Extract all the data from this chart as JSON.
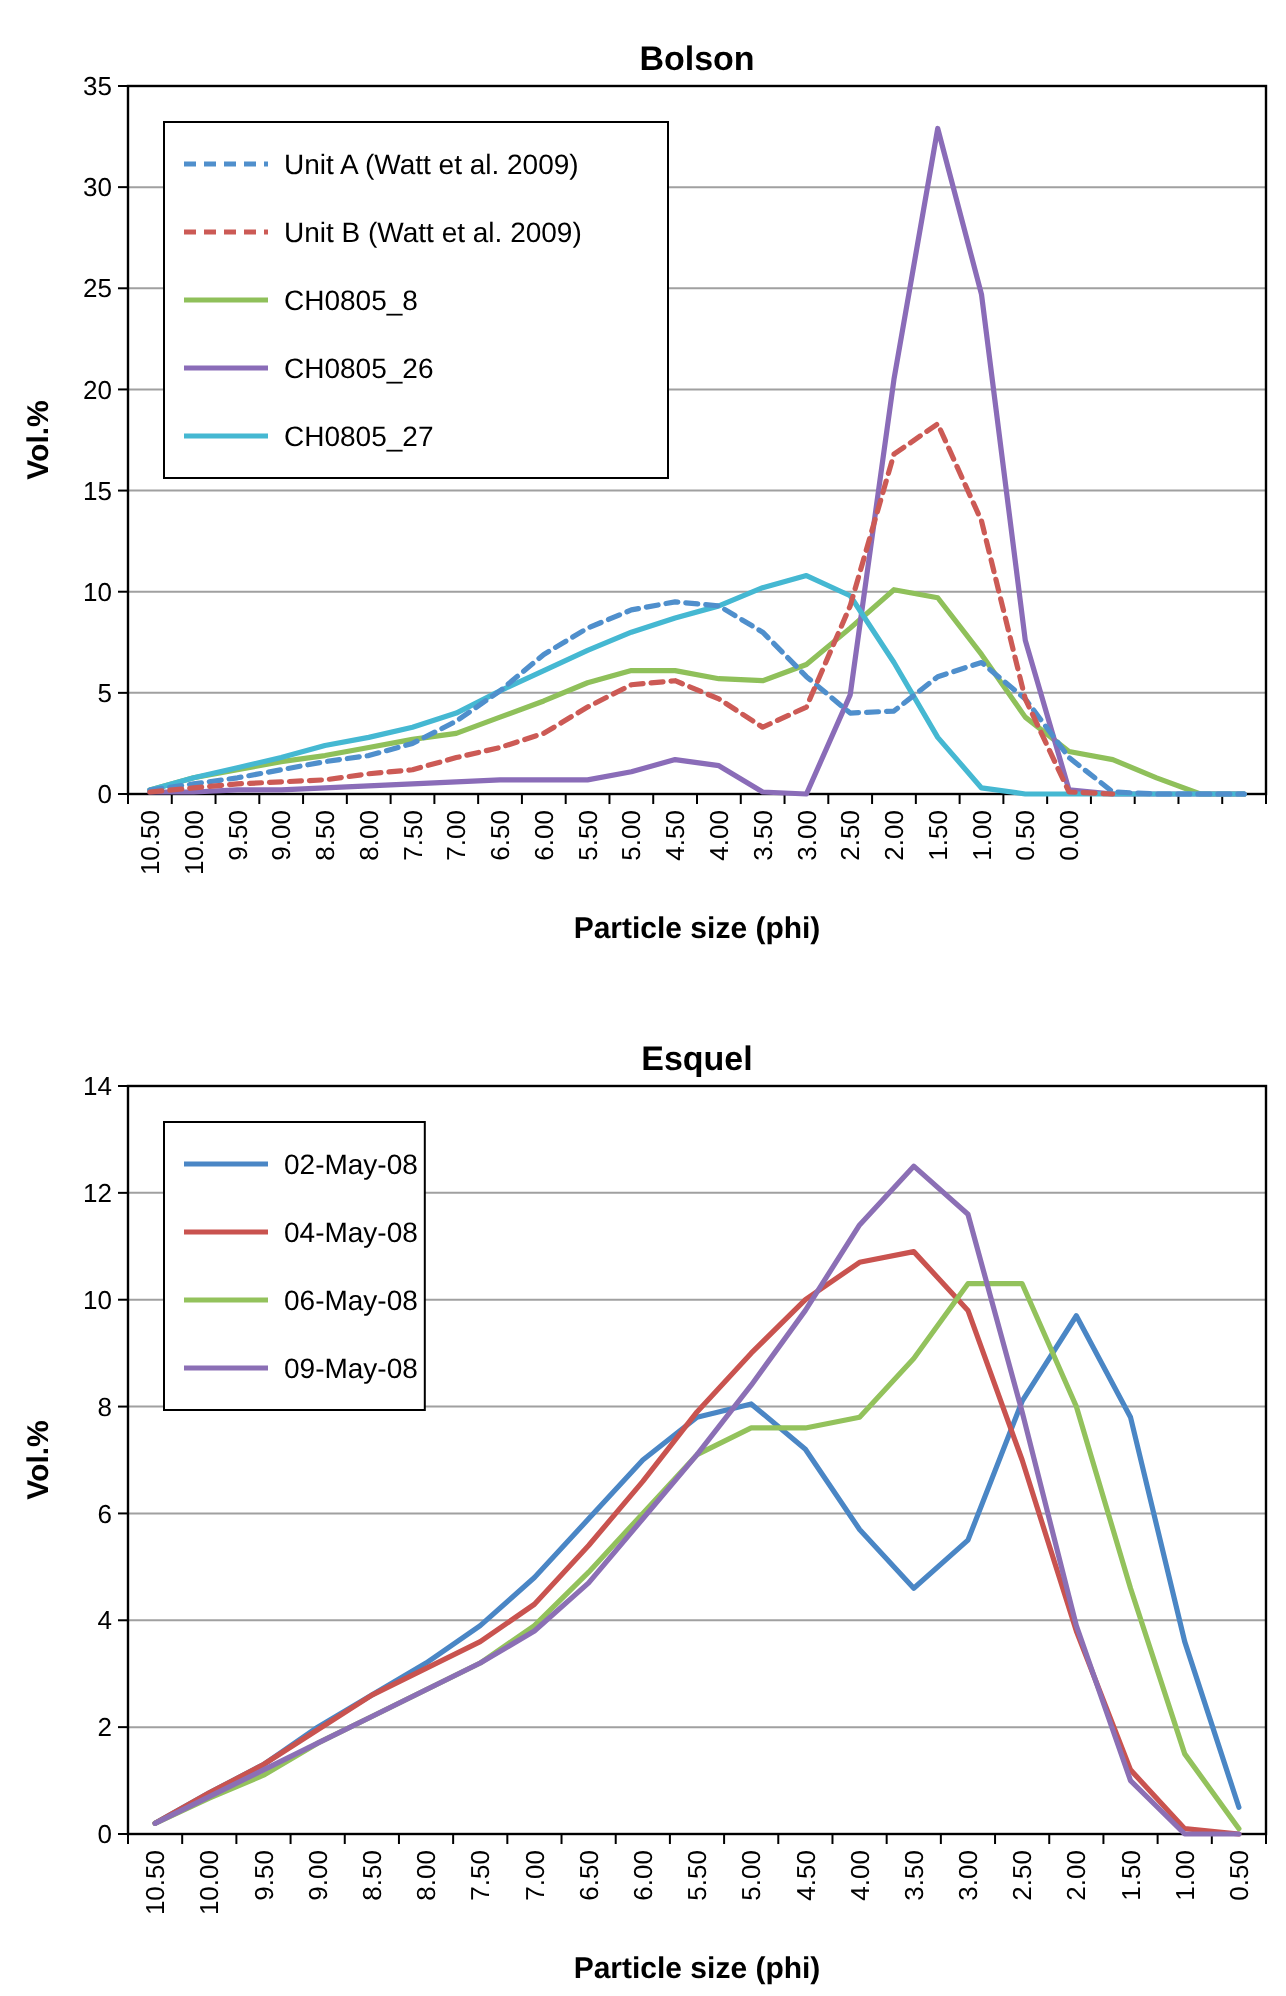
{
  "chart_data": [
    {
      "type": "line",
      "title": "Bolson",
      "xlabel": "Particle size (phi)",
      "ylabel": "Vol.%",
      "categories": [
        "10.50",
        "10.00",
        "9.50",
        "9.00",
        "8.50",
        "8.00",
        "7.50",
        "7.00",
        "6.50",
        "6.00",
        "5.50",
        "5.00",
        "4.50",
        "4.00",
        "3.50",
        "3.00",
        "2.50",
        "2.00",
        "1.50",
        "1.00",
        "0.50",
        "0.00",
        null,
        null,
        null,
        null
      ],
      "ylim": [
        0,
        35
      ],
      "yticks": [
        0,
        5,
        10,
        15,
        20,
        25,
        30,
        35
      ],
      "grid": "y",
      "legend": "top left",
      "marker": "none",
      "series": [
        {
          "name": "Unit A (Watt et al. 2009)",
          "color": "#4f8fcc",
          "line_style": "dashed",
          "values": [
            0.2,
            0.5,
            0.8,
            1.2,
            1.6,
            1.9,
            2.5,
            3.6,
            5.1,
            6.9,
            8.2,
            9.1,
            9.5,
            9.3,
            8.0,
            5.8,
            4.0,
            4.1,
            5.8,
            6.5,
            4.7,
            1.8,
            0.1,
            0,
            0,
            0
          ]
        },
        {
          "name": "Unit B (Watt et al. 2009)",
          "color": "#cc5a55",
          "line_style": "dashed",
          "values": [
            0.1,
            0.3,
            0.5,
            0.6,
            0.7,
            1.0,
            1.2,
            1.8,
            2.3,
            3.0,
            4.3,
            5.4,
            5.6,
            4.7,
            3.3,
            4.3,
            9.3,
            16.8,
            18.3,
            13.5,
            4.7,
            0.1,
            0,
            null,
            null,
            null
          ]
        },
        {
          "name": "CH0805_8",
          "color": "#8fc05a",
          "line_style": "solid",
          "values": [
            0.2,
            0.8,
            1.2,
            1.6,
            1.9,
            2.3,
            2.7,
            3.0,
            3.8,
            4.6,
            5.5,
            6.1,
            6.1,
            5.7,
            5.6,
            6.4,
            8.2,
            10.1,
            9.7,
            6.9,
            3.8,
            2.1,
            1.7,
            0.8,
            0,
            0
          ]
        },
        {
          "name": "CH0805_26",
          "color": "#8a6cb8",
          "line_style": "solid",
          "values": [
            0.1,
            0.1,
            0.2,
            0.2,
            0.3,
            0.4,
            0.5,
            0.6,
            0.7,
            0.7,
            0.7,
            1.1,
            1.7,
            1.4,
            0.1,
            0,
            4.9,
            20.5,
            32.9,
            24.7,
            7.6,
            0.2,
            0,
            0,
            0,
            0
          ]
        },
        {
          "name": "CH0805_27",
          "color": "#45b8d2",
          "line_style": "solid",
          "values": [
            0.2,
            0.8,
            1.3,
            1.8,
            2.4,
            2.8,
            3.3,
            4.0,
            5.1,
            6.1,
            7.1,
            8.0,
            8.7,
            9.3,
            10.2,
            10.8,
            9.8,
            6.5,
            2.8,
            0.3,
            0,
            0,
            0,
            0,
            0,
            0
          ]
        }
      ]
    },
    {
      "type": "line",
      "title": "Esquel",
      "xlabel": "Particle size (phi)",
      "ylabel": "Vol.%",
      "categories": [
        "10.50",
        "10.00",
        "9.50",
        "9.00",
        "8.50",
        "8.00",
        "7.50",
        "7.00",
        "6.50",
        "6.00",
        "5.50",
        "5.00",
        "4.50",
        "4.00",
        "3.50",
        "3.00",
        "2.50",
        "2.00",
        "1.50",
        "1.00",
        "0.50"
      ],
      "ylim": [
        0,
        14
      ],
      "yticks": [
        0,
        2,
        4,
        6,
        8,
        10,
        12,
        14
      ],
      "grid": "y",
      "legend": "top left",
      "marker": "none",
      "series": [
        {
          "name": "02-May-08",
          "color": "#4a86c5",
          "line_style": "solid",
          "values": [
            0.2,
            0.77,
            1.3,
            2.0,
            2.6,
            3.2,
            3.9,
            4.8,
            5.9,
            7.0,
            7.8,
            8.05,
            7.2,
            5.7,
            4.6,
            5.5,
            8.1,
            9.7,
            7.8,
            3.6,
            0.5
          ]
        },
        {
          "name": "04-May-08",
          "color": "#c9534f",
          "line_style": "solid",
          "values": [
            0.2,
            0.77,
            1.3,
            1.95,
            2.6,
            3.1,
            3.6,
            4.3,
            5.4,
            6.6,
            7.9,
            9.0,
            10.0,
            10.7,
            10.9,
            9.8,
            7.0,
            3.8,
            1.2,
            0.1,
            0
          ]
        },
        {
          "name": "06-May-08",
          "color": "#93c25c",
          "line_style": "solid",
          "values": [
            0.2,
            0.67,
            1.1,
            1.7,
            2.2,
            2.7,
            3.2,
            3.9,
            4.9,
            6.0,
            7.1,
            7.6,
            7.6,
            7.8,
            8.9,
            10.3,
            10.3,
            8.0,
            4.6,
            1.5,
            0.1
          ]
        },
        {
          "name": "09-May-08",
          "color": "#8b6fb5",
          "line_style": "solid",
          "values": [
            0.2,
            0.7,
            1.2,
            1.7,
            2.2,
            2.7,
            3.2,
            3.8,
            4.7,
            5.9,
            7.1,
            8.4,
            9.8,
            11.4,
            12.5,
            11.6,
            7.9,
            3.9,
            1.0,
            0,
            0
          ]
        }
      ]
    }
  ]
}
